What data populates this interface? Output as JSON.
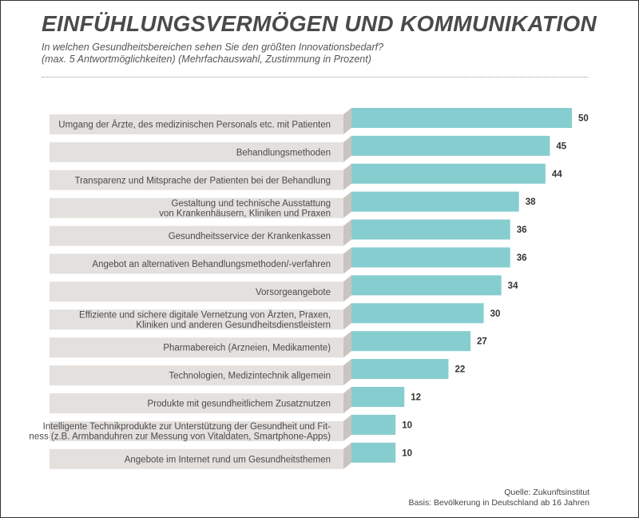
{
  "title": "EINFÜHLUNGSVERMÖGEN UND KOMMUNIKATION",
  "subtitle_line1": "In welchen Gesundheitsbereichen sehen Sie den größten Innovationsbedarf?",
  "subtitle_line2": "(max. 5 Antwortmöglichkeiten) (Mehrfachauswahl, Zustimmung in Prozent)",
  "source_line1": "Quelle: Zukunftsinstitut",
  "source_line2": "Basis: Bevölkerung in Deutschland ab 16 Jahren",
  "colors": {
    "bar": "#86cdd0",
    "label_band": "#e4e0dd",
    "band_shadow": "#c9c4c0"
  },
  "chart_data": {
    "type": "bar",
    "orientation": "horizontal",
    "categories": [
      [
        "Umgang der Ärzte, des medizinischen Personals etc. mit Patienten"
      ],
      [
        "Behandlungsmethoden"
      ],
      [
        "Transparenz und Mitsprache der Patienten bei der Behandlung"
      ],
      [
        "Gestaltung und technische Ausstattung",
        "von Krankenhäusern, Kliniken und Praxen"
      ],
      [
        "Gesundheitsservice der Krankenkassen"
      ],
      [
        "Angebot an alternativen Behandlungsmethoden/-verfahren"
      ],
      [
        "Vorsorgeangebote"
      ],
      [
        "Effiziente und sichere digitale Vernetzung von Ärzten, Praxen,",
        "Kliniken und anderen Gesundheitsdienstleistern"
      ],
      [
        "Pharmabereich (Arzneien, Medikamente)"
      ],
      [
        "Technologien, Medizintechnik allgemein"
      ],
      [
        "Produkte mit gesundheitlichem Zusatznutzen"
      ],
      [
        "Intelligente Technikprodukte zur Unterstützung der Gesundheit und Fit-",
        "ness (z.B. Armbanduhren zur Messung von Vitaldaten, Smartphone-Apps)"
      ],
      [
        "Angebote im Internet rund um Gesundheitsthemen"
      ]
    ],
    "values": [
      50,
      45,
      44,
      38,
      36,
      36,
      34,
      30,
      27,
      22,
      12,
      10,
      10
    ],
    "xlim": [
      0,
      50
    ],
    "grid": false,
    "legend": "none"
  }
}
